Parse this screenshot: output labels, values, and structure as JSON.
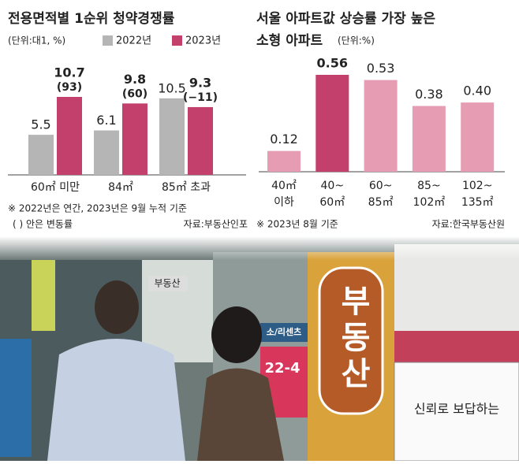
{
  "chart_data": [
    {
      "type": "bar",
      "title": "전용면적별 1순위 청약경쟁률",
      "unit": "(단위:대1, %)",
      "categories": [
        "60㎡ 미만",
        "84㎡",
        "85㎡ 초과"
      ],
      "series": [
        {
          "name": "2022년",
          "color": "#b5b5b5",
          "values": [
            5.5,
            6.1,
            10.5
          ]
        },
        {
          "name": "2023년",
          "color": "#c2406b",
          "values": [
            10.7,
            9.8,
            9.3
          ],
          "annotations": [
            "(93)",
            "(60)",
            "(−11)"
          ]
        }
      ],
      "notes": [
        "※ 2022년은 연간, 2023년은 9월 누적 기준",
        "( ) 안은 변동률"
      ],
      "source": "자료:부동산인포"
    },
    {
      "type": "bar",
      "title": [
        "서울 아파트값 상승률 가장 높은",
        "소형 아파트"
      ],
      "unit": "(단위:%)",
      "categories": [
        [
          "40㎡",
          "이하"
        ],
        [
          "40~",
          "60㎡"
        ],
        [
          "60~",
          "85㎡"
        ],
        [
          "85~",
          "102㎡"
        ],
        [
          "102~",
          "135㎡"
        ]
      ],
      "values": [
        0.12,
        0.56,
        0.53,
        0.38,
        0.4
      ],
      "value_labels": [
        "0.12",
        "0.56",
        "0.53",
        "0.38",
        "0.40"
      ],
      "colors": [
        "#e69db3",
        "#c2406b",
        "#e69db3",
        "#e69db3",
        "#e69db3"
      ],
      "notes": [
        "※ 2023년 8월 기준"
      ],
      "source": "자료:한국부동산원"
    }
  ],
  "photo": {
    "signs": [
      "부동산",
      "신뢰로 보답하는",
      "22-4",
      "소/리센츠",
      "부동산"
    ]
  }
}
